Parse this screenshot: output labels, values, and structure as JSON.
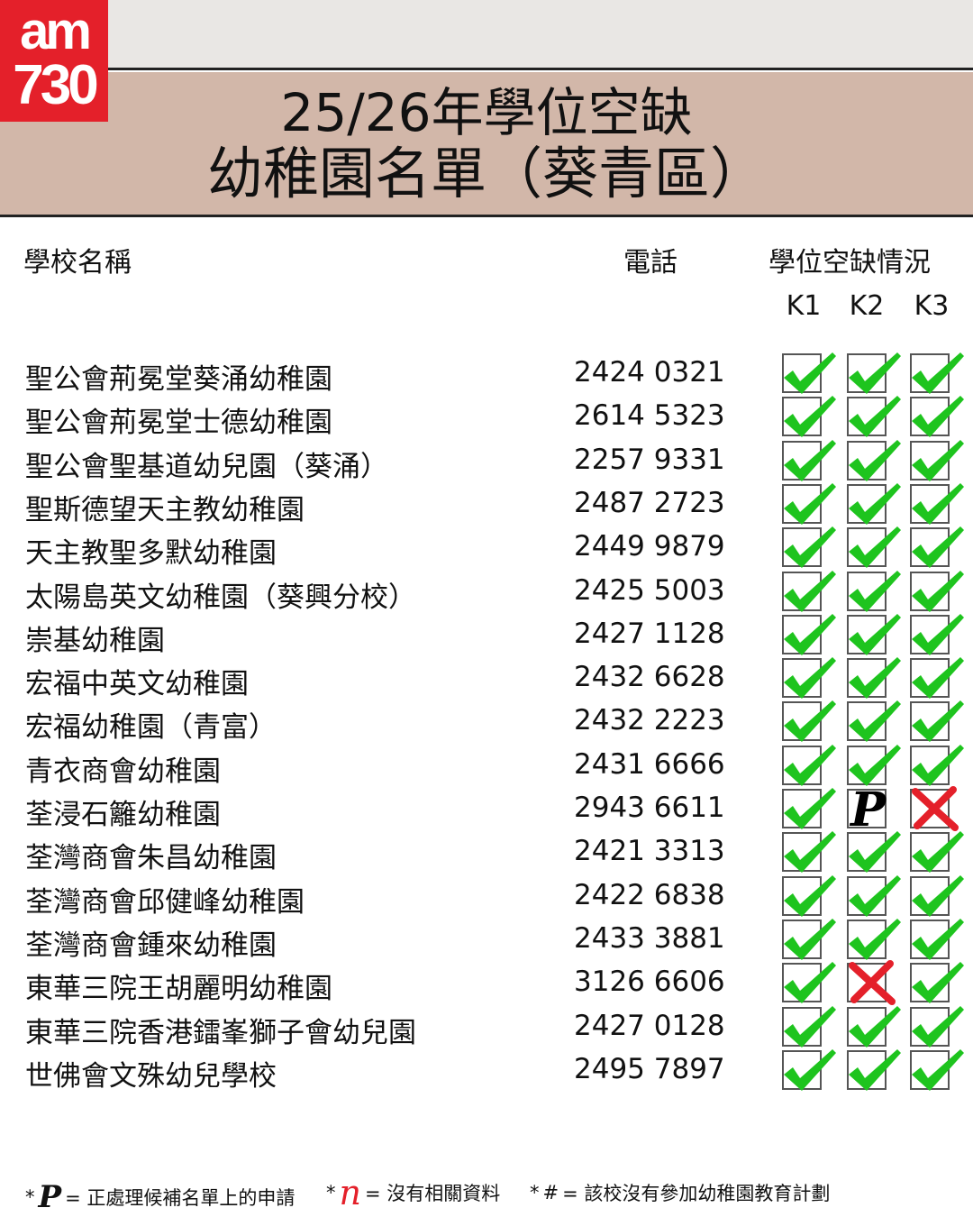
{
  "logo": {
    "line1": "am",
    "line2": "730"
  },
  "title": {
    "line1": "25/26年學位空缺",
    "line2": "幼稚園名單（葵青區）"
  },
  "headers": {
    "school": "學校名稱",
    "phone": "電話",
    "vacancy": "學位空缺情況",
    "levels": [
      "K1",
      "K2",
      "K3"
    ]
  },
  "colors": {
    "check": "#1ec41e",
    "cross": "#e4202a",
    "title_band": "#d2b7a9",
    "logo": "#e4202a"
  },
  "schools": [
    {
      "name": "聖公會荊冕堂葵涌幼稚園",
      "phone": "2424 0321",
      "status": [
        "check",
        "check",
        "check"
      ]
    },
    {
      "name": "聖公會荊冕堂士德幼稚園",
      "phone": "2614 5323",
      "status": [
        "check",
        "check",
        "check"
      ]
    },
    {
      "name": "聖公會聖基道幼兒園（葵涌）",
      "phone": "2257 9331",
      "status": [
        "check",
        "check",
        "check"
      ]
    },
    {
      "name": "聖斯德望天主教幼稚園",
      "phone": "2487 2723",
      "status": [
        "check",
        "check",
        "check"
      ]
    },
    {
      "name": "天主教聖多默幼稚園",
      "phone": "2449 9879",
      "status": [
        "check",
        "check",
        "check"
      ]
    },
    {
      "name": "太陽島英文幼稚園（葵興分校）",
      "phone": "2425 5003",
      "status": [
        "check",
        "check",
        "check"
      ]
    },
    {
      "name": "崇基幼稚園",
      "phone": "2427 1128",
      "status": [
        "check",
        "check",
        "check"
      ]
    },
    {
      "name": "宏福中英文幼稚園",
      "phone": "2432 6628",
      "status": [
        "check",
        "check",
        "check"
      ]
    },
    {
      "name": "宏福幼稚園（青富）",
      "phone": "2432 2223",
      "status": [
        "check",
        "check",
        "check"
      ]
    },
    {
      "name": "青衣商會幼稚園",
      "phone": "2431 6666",
      "status": [
        "check",
        "check",
        "check"
      ]
    },
    {
      "name": "荃浸石籬幼稚園",
      "phone": "2943 6611",
      "status": [
        "check",
        "waitlist",
        "cross"
      ]
    },
    {
      "name": "荃灣商會朱昌幼稚園",
      "phone": "2421 3313",
      "status": [
        "check",
        "check",
        "check"
      ]
    },
    {
      "name": "荃灣商會邱健峰幼稚園",
      "phone": "2422 6838",
      "status": [
        "check",
        "check",
        "check"
      ]
    },
    {
      "name": "荃灣商會鍾來幼稚園",
      "phone": "2433 3881",
      "status": [
        "check",
        "check",
        "check"
      ]
    },
    {
      "name": "東華三院王胡麗明幼稚園",
      "phone": "3126 6606",
      "status": [
        "check",
        "cross",
        "check"
      ]
    },
    {
      "name": "東華三院香港鐳峯獅子會幼兒園",
      "phone": "2427 0128",
      "status": [
        "check",
        "check",
        "check"
      ]
    },
    {
      "name": "世佛會文殊幼兒學校",
      "phone": "2495 7897",
      "status": [
        "check",
        "check",
        "check"
      ]
    }
  ],
  "legend": [
    {
      "symbol": "P",
      "text": "= 正處理候補名單上的申請"
    },
    {
      "symbol": "n",
      "text": "= 沒有相關資料"
    },
    {
      "symbol": "#",
      "text": "= 該校沒有參加幼稚園教育計劃"
    }
  ]
}
